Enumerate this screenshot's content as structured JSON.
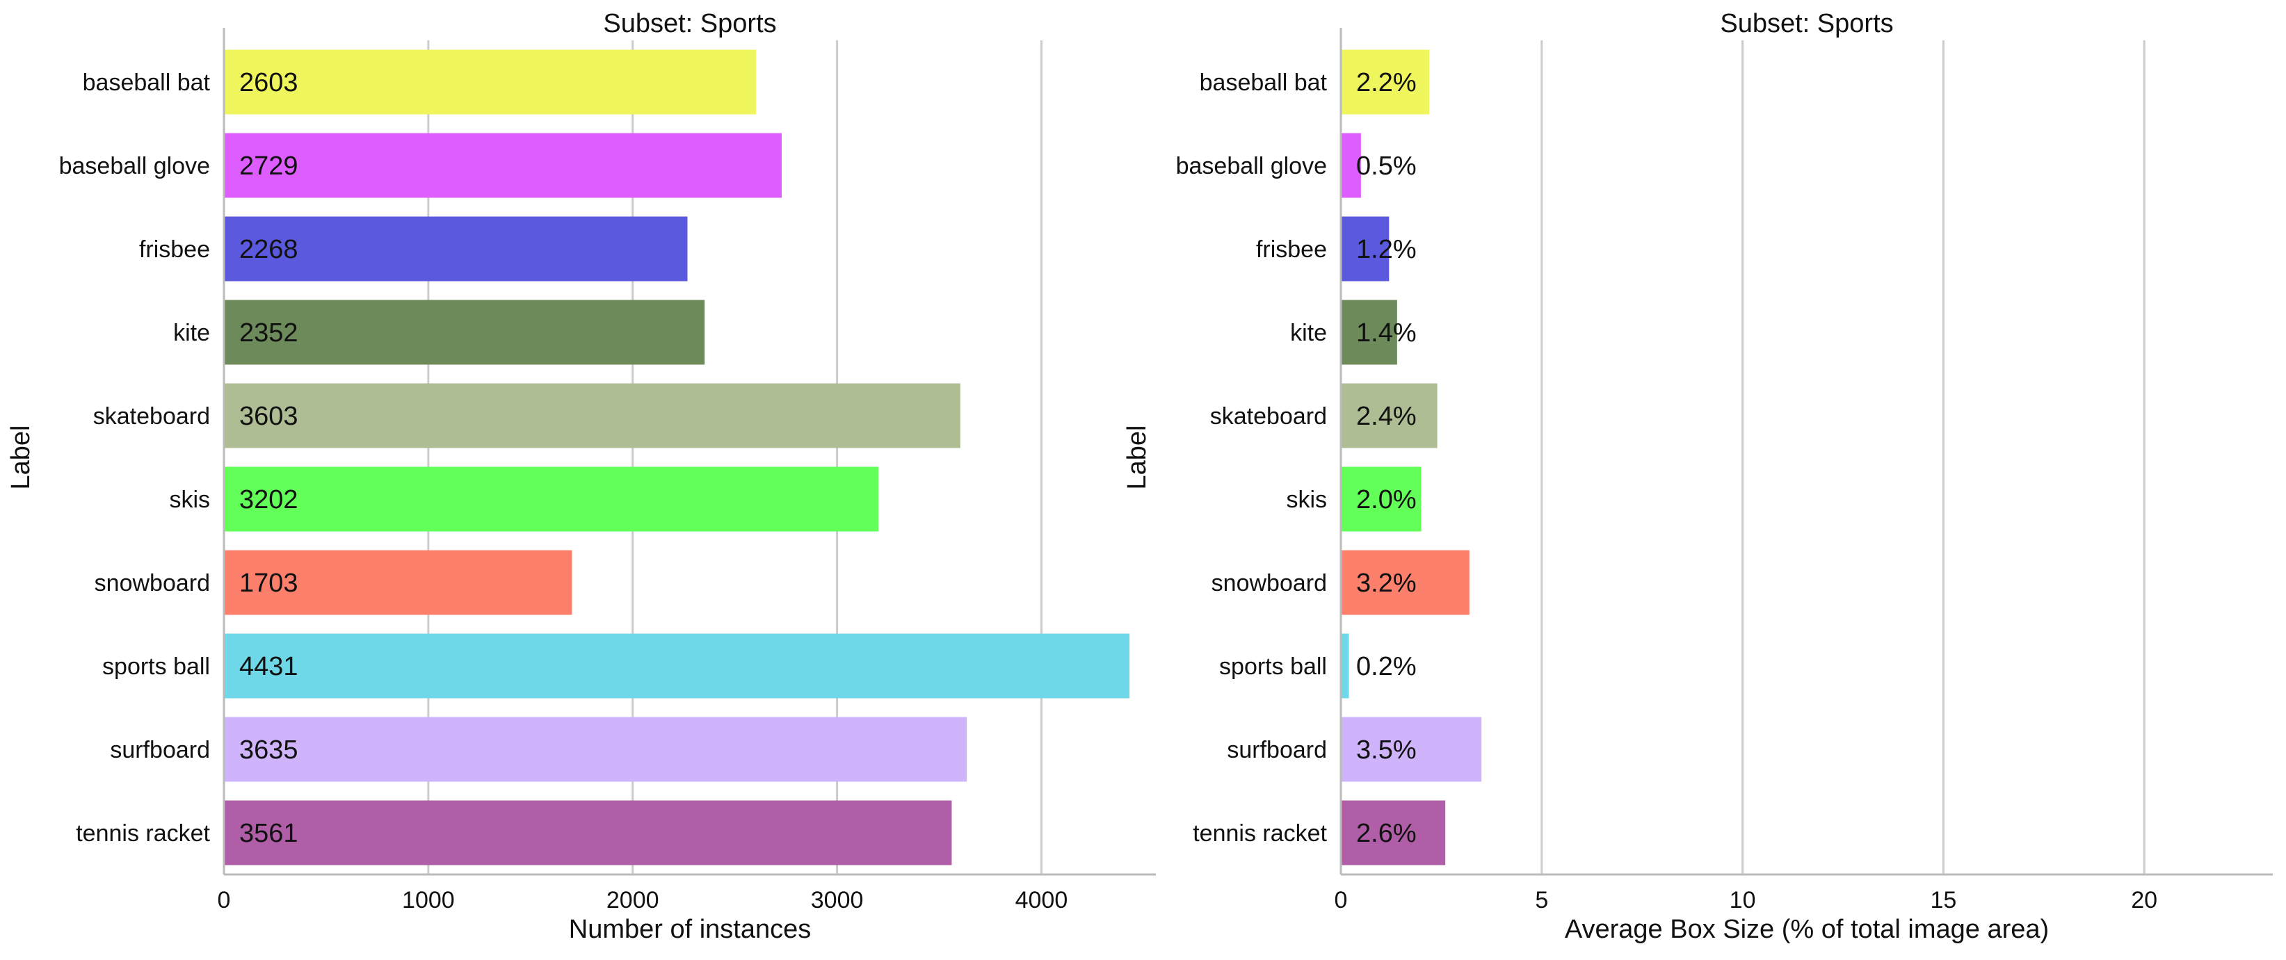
{
  "chart_data": [
    {
      "type": "bar",
      "orientation": "horizontal",
      "title": "Subset: Sports",
      "xlabel": "Number of instances",
      "ylabel": "Label",
      "xlim": [
        0,
        4560
      ],
      "xticks": [
        0,
        1000,
        2000,
        3000,
        4000
      ],
      "grid": "vertical",
      "categories": [
        "baseball bat",
        "baseball glove",
        "frisbee",
        "kite",
        "skateboard",
        "skis",
        "snowboard",
        "sports ball",
        "surfboard",
        "tennis racket"
      ],
      "values": [
        2603,
        2729,
        2268,
        2352,
        3603,
        3202,
        1703,
        4431,
        3635,
        3561
      ],
      "value_labels": [
        "2603",
        "2729",
        "2268",
        "2352",
        "3603",
        "3202",
        "1703",
        "4431",
        "3635",
        "3561"
      ],
      "colors": [
        "#eff55c",
        "#de5dff",
        "#5b59dd",
        "#6c8a5a",
        "#afbd94",
        "#61ff57",
        "#fd806c",
        "#6fd8e8",
        "#cfb4fc",
        "#b05ea8"
      ]
    },
    {
      "type": "bar",
      "orientation": "horizontal",
      "title": "Subset: Sports",
      "xlabel": "Average Box Size (% of total image area)",
      "ylabel": "Label",
      "xlim": [
        0,
        23.2
      ],
      "xticks": [
        0,
        5,
        10,
        15,
        20
      ],
      "grid": "vertical",
      "categories": [
        "baseball bat",
        "baseball glove",
        "frisbee",
        "kite",
        "skateboard",
        "skis",
        "snowboard",
        "sports ball",
        "surfboard",
        "tennis racket"
      ],
      "values": [
        2.2,
        0.5,
        1.2,
        1.4,
        2.4,
        2.0,
        3.2,
        0.2,
        3.5,
        2.6
      ],
      "value_labels": [
        "2.2%",
        "0.5%",
        "1.2%",
        "1.4%",
        "2.4%",
        "2.0%",
        "3.2%",
        "0.2%",
        "3.5%",
        "2.6%"
      ],
      "colors": [
        "#eff55c",
        "#de5dff",
        "#5b59dd",
        "#6c8a5a",
        "#afbd94",
        "#61ff57",
        "#fd806c",
        "#6fd8e8",
        "#cfb4fc",
        "#b05ea8"
      ]
    }
  ]
}
